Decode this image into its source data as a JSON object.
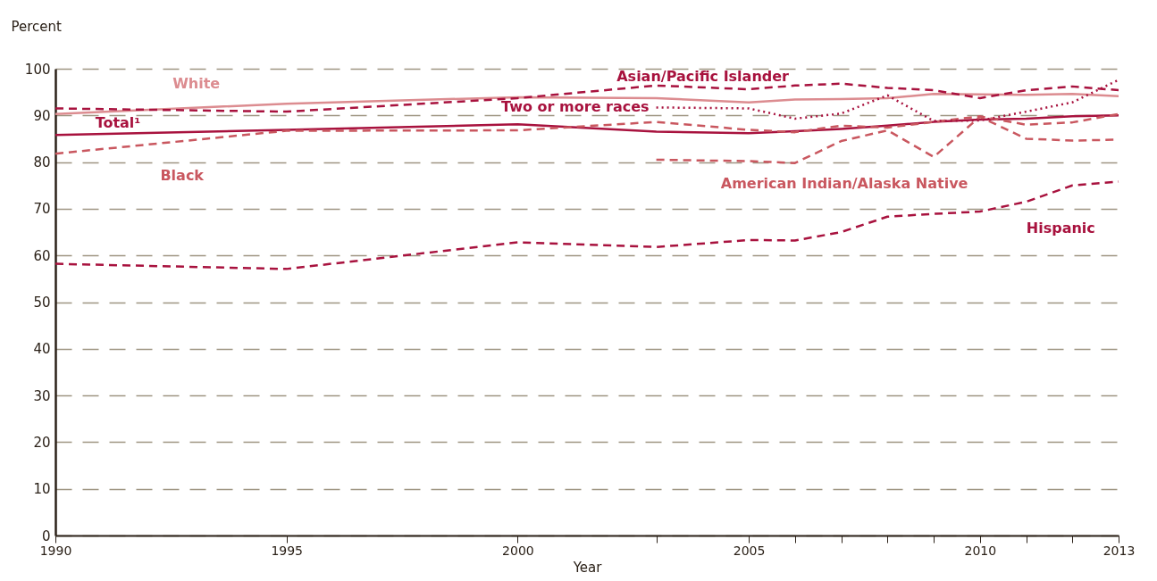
{
  "chart_data": {
    "type": "line",
    "xlabel": "Year",
    "ylabel": "Percent",
    "x": [
      1990,
      1995,
      2000,
      2003,
      2005,
      2006,
      2007,
      2008,
      2009,
      2010,
      2011,
      2012,
      2013
    ],
    "series": [
      {
        "name": "Total¹",
        "color": "#a8123e",
        "line_style": "solid",
        "values": [
          85.8,
          86.9,
          88.1,
          86.5,
          86.2,
          86.6,
          87.1,
          87.8,
          88.6,
          89.1,
          89.3,
          89.8,
          90.0
        ]
      },
      {
        "name": "White",
        "color": "#dc8c90",
        "line_style": "solid",
        "values": [
          90.3,
          92.5,
          93.9,
          93.7,
          92.8,
          93.4,
          93.5,
          93.7,
          94.6,
          94.5,
          94.4,
          94.6,
          94.1
        ]
      },
      {
        "name": "Black",
        "color": "#c9575f",
        "line_style": "dashed",
        "values": [
          81.8,
          86.7,
          86.8,
          88.6,
          86.9,
          86.4,
          87.8,
          87.4,
          88.6,
          89.8,
          88.0,
          88.5,
          90.3
        ]
      },
      {
        "name": "Hispanic",
        "color": "#a8123e",
        "line_style": "dashed",
        "values": [
          58.2,
          57.1,
          62.8,
          61.8,
          63.3,
          63.2,
          65.0,
          68.3,
          68.9,
          69.4,
          71.5,
          75.0,
          75.8
        ]
      },
      {
        "name": "Asian/Pacific Islander",
        "color": "#a8123e",
        "line_style": "dashed",
        "values": [
          91.5,
          90.8,
          93.7,
          96.4,
          95.6,
          96.4,
          96.8,
          95.9,
          95.4,
          93.7,
          95.4,
          96.2,
          95.4
        ]
      },
      {
        "name": "American Indian/Alaska Native",
        "color": "#c9575f",
        "line_style": "dashed",
        "x": [
          2003,
          2005,
          2006,
          2007,
          2008,
          2009,
          2010,
          2011,
          2012,
          2013
        ],
        "values": [
          80.5,
          80.2,
          79.8,
          84.5,
          86.8,
          81.1,
          89.7,
          85.0,
          84.6,
          84.8
        ]
      },
      {
        "name": "Two or more races",
        "color": "#a8123e",
        "line_style": "dotted",
        "x": [
          2003,
          2005,
          2006,
          2007,
          2008,
          2009,
          2010,
          2011,
          2012,
          2013
        ],
        "values": [
          91.7,
          91.5,
          89.3,
          90.4,
          94.3,
          88.8,
          88.9,
          90.8,
          92.8,
          97.6
        ]
      }
    ],
    "xlim": [
      1990,
      2013
    ],
    "xticks": [
      1990,
      1995,
      2000,
      {
        "value": 2003,
        "label": null
      },
      2005,
      {
        "value": 2006,
        "label": null
      },
      {
        "value": 2007,
        "label": null
      },
      {
        "value": 2008,
        "label": null
      },
      {
        "value": 2009,
        "label": null
      },
      2010,
      {
        "value": 2011,
        "label": null
      },
      {
        "value": 2012,
        "label": null
      },
      2013
    ],
    "ylim": [
      0,
      100
    ],
    "yticks": [
      0,
      10,
      20,
      30,
      40,
      50,
      60,
      70,
      80,
      90,
      100
    ],
    "grid": "y",
    "legend": false
  }
}
